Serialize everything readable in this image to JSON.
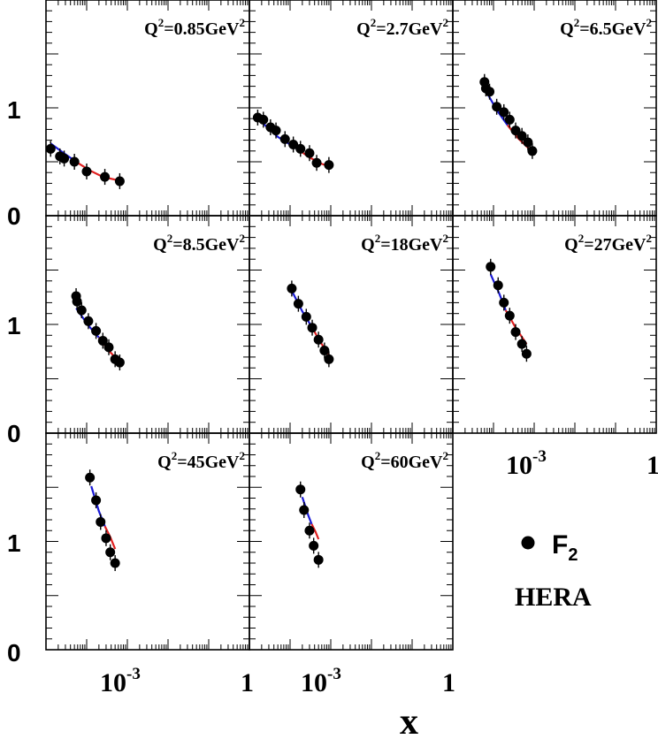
{
  "chart_data": {
    "type": "scatter",
    "xlabel": "x",
    "ylabel": "",
    "x_scale": "log",
    "xlim": [
      1e-05,
      1
    ],
    "ylim": [
      0,
      2
    ],
    "y_ticklabels": [
      "0",
      "1"
    ],
    "x_ticklabels": [
      "10",
      "-3",
      "1"
    ],
    "legend": {
      "marker_label": "F",
      "marker_sub": "2",
      "source": "HERA",
      "placement": "bottom-right"
    },
    "colors": {
      "points": "#000000",
      "curve_low_x": "#1a1ad6",
      "curve_high_x": "#e02020"
    },
    "panels": [
      {
        "q2_prefix": "Q",
        "q2_exp": "2",
        "q2_value": "=0.85GeV",
        "q2_unit_exp": "2",
        "points": [
          [
            1.3e-05,
            0.62
          ],
          [
            2.2e-05,
            0.55
          ],
          [
            2.8e-05,
            0.53
          ],
          [
            5e-05,
            0.5
          ],
          [
            0.0001,
            0.41
          ],
          [
            0.00028,
            0.36
          ],
          [
            0.00065,
            0.32
          ]
        ],
        "curve_blue": [
          [
            1.3e-05,
            0.67
          ],
          [
            3e-05,
            0.57
          ],
          [
            6e-05,
            0.49
          ]
        ],
        "curve_red": [
          [
            6e-05,
            0.49
          ],
          [
            0.00012,
            0.42
          ],
          [
            0.00025,
            0.36
          ],
          [
            0.00055,
            0.33
          ]
        ]
      },
      {
        "q2_prefix": "Q",
        "q2_exp": "2",
        "q2_value": "=2.7GeV",
        "q2_unit_exp": "2",
        "points": [
          [
            1.6e-05,
            0.91
          ],
          [
            2.2e-05,
            0.89
          ],
          [
            3.3e-05,
            0.82
          ],
          [
            4.5e-05,
            0.79
          ],
          [
            7.5e-05,
            0.71
          ],
          [
            0.00012,
            0.66
          ],
          [
            0.00018,
            0.62
          ],
          [
            0.0003,
            0.58
          ],
          [
            0.00045,
            0.49
          ],
          [
            0.0009,
            0.47
          ]
        ],
        "curve_blue": [
          [
            1.6e-05,
            0.9
          ],
          [
            5e-05,
            0.73
          ],
          [
            0.00015,
            0.62
          ]
        ],
        "curve_red": [
          [
            0.00015,
            0.62
          ],
          [
            0.0003,
            0.54
          ],
          [
            0.0006,
            0.48
          ],
          [
            0.0009,
            0.46
          ]
        ]
      },
      {
        "q2_prefix": "Q",
        "q2_exp": "2",
        "q2_value": "=6.5GeV",
        "q2_unit_exp": "2",
        "points": [
          [
            6e-05,
            1.24
          ],
          [
            6.5e-05,
            1.18
          ],
          [
            8e-05,
            1.15
          ],
          [
            0.00012,
            1.01
          ],
          [
            0.00018,
            0.96
          ],
          [
            0.00025,
            0.89
          ],
          [
            0.00035,
            0.79
          ],
          [
            0.0005,
            0.74
          ],
          [
            0.0007,
            0.68
          ],
          [
            0.0009,
            0.6
          ]
        ],
        "curve_blue": [
          [
            6e-05,
            1.18
          ],
          [
            0.00012,
            0.98
          ],
          [
            0.00022,
            0.84
          ]
        ],
        "curve_red": [
          [
            0.00022,
            0.84
          ],
          [
            0.0004,
            0.72
          ],
          [
            0.0007,
            0.63
          ],
          [
            0.0009,
            0.59
          ]
        ]
      },
      {
        "q2_prefix": "Q",
        "q2_exp": "2",
        "q2_value": "=8.5GeV",
        "q2_unit_exp": "2",
        "points": [
          [
            5.5e-05,
            1.26
          ],
          [
            5.8e-05,
            1.21
          ],
          [
            7.5e-05,
            1.13
          ],
          [
            0.00011,
            1.03
          ],
          [
            0.00017,
            0.94
          ],
          [
            0.00025,
            0.85
          ],
          [
            0.00035,
            0.79
          ],
          [
            0.0005,
            0.68
          ],
          [
            0.00065,
            0.65
          ]
        ],
        "curve_blue": [
          [
            5.5e-05,
            1.15
          ],
          [
            0.00011,
            0.99
          ],
          [
            0.0002,
            0.88
          ]
        ],
        "curve_red": [
          [
            0.0002,
            0.88
          ],
          [
            0.00035,
            0.76
          ],
          [
            0.00065,
            0.65
          ]
        ]
      },
      {
        "q2_prefix": "Q",
        "q2_exp": "2",
        "q2_value": "=18GeV",
        "q2_unit_exp": "2",
        "points": [
          [
            0.00011,
            1.33
          ],
          [
            0.00016,
            1.19
          ],
          [
            0.00025,
            1.07
          ],
          [
            0.00035,
            0.97
          ],
          [
            0.0005,
            0.86
          ],
          [
            0.0007,
            0.76
          ],
          [
            0.0009,
            0.68
          ]
        ],
        "curve_blue": [
          [
            0.00011,
            1.31
          ],
          [
            0.0002,
            1.12
          ],
          [
            0.00035,
            0.97
          ]
        ],
        "curve_red": [
          [
            0.00035,
            0.97
          ],
          [
            0.00055,
            0.84
          ],
          [
            0.0009,
            0.72
          ]
        ]
      },
      {
        "q2_prefix": "Q",
        "q2_exp": "2",
        "q2_value": "=27GeV",
        "q2_unit_exp": "2",
        "points": [
          [
            8.5e-05,
            1.53
          ],
          [
            0.00013,
            1.36
          ],
          [
            0.00018,
            1.2
          ],
          [
            0.00025,
            1.08
          ],
          [
            0.00035,
            0.93
          ],
          [
            0.0005,
            0.82
          ],
          [
            0.00065,
            0.73
          ]
        ],
        "curve_blue": [
          [
            8.5e-05,
            1.46
          ],
          [
            0.00014,
            1.28
          ],
          [
            0.0002,
            1.13
          ]
        ],
        "curve_red": [
          [
            0.0002,
            1.13
          ],
          [
            0.00035,
            0.97
          ],
          [
            0.00065,
            0.82
          ]
        ]
      },
      {
        "q2_prefix": "Q",
        "q2_exp": "2",
        "q2_value": "=45GeV",
        "q2_unit_exp": "2",
        "points": [
          [
            0.00012,
            1.59
          ],
          [
            0.00017,
            1.38
          ],
          [
            0.00022,
            1.18
          ],
          [
            0.0003,
            1.03
          ],
          [
            0.00038,
            0.9
          ],
          [
            0.0005,
            0.8
          ]
        ],
        "curve_blue": [
          [
            0.00013,
            1.51
          ],
          [
            0.0002,
            1.28
          ],
          [
            0.00028,
            1.14
          ]
        ],
        "curve_red": [
          [
            0.00028,
            1.14
          ],
          [
            0.00038,
            1.04
          ],
          [
            0.0005,
            0.93
          ]
        ]
      },
      {
        "q2_prefix": "Q",
        "q2_exp": "2",
        "q2_value": "=60GeV",
        "q2_unit_exp": "2",
        "points": [
          [
            0.00018,
            1.48
          ],
          [
            0.00022,
            1.29
          ],
          [
            0.0003,
            1.1
          ],
          [
            0.00038,
            0.96
          ],
          [
            0.0005,
            0.83
          ]
        ],
        "curve_blue": [
          [
            0.0002,
            1.41
          ],
          [
            0.00028,
            1.24
          ],
          [
            0.00034,
            1.16
          ]
        ],
        "curve_red": [
          [
            0.00034,
            1.16
          ],
          [
            0.00042,
            1.09
          ],
          [
            0.0005,
            1.02
          ]
        ]
      }
    ]
  }
}
